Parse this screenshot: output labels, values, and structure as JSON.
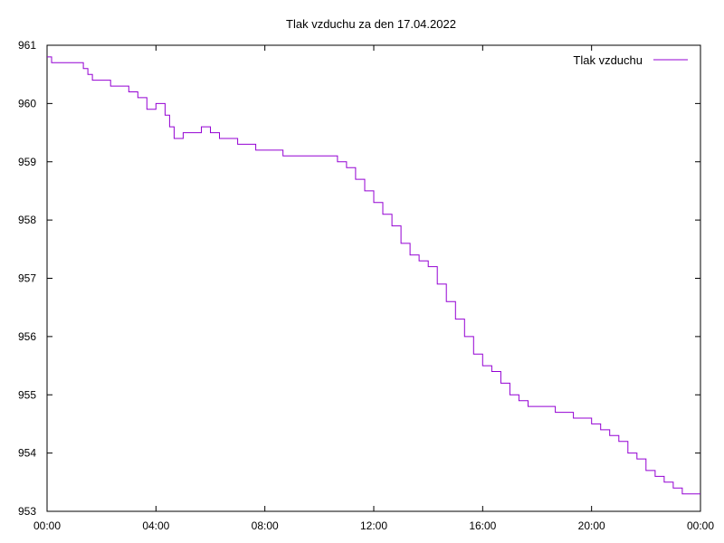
{
  "chart_data": {
    "type": "line",
    "title": "Tlak vzduchu za den 17.04.2022",
    "xlabel": "",
    "ylabel": "",
    "xlim": [
      "00:00",
      "24:00"
    ],
    "ylim": [
      953,
      961
    ],
    "x_ticks": [
      "00:00",
      "04:00",
      "08:00",
      "12:00",
      "16:00",
      "20:00",
      "00:00"
    ],
    "y_ticks": [
      953,
      954,
      955,
      956,
      957,
      958,
      959,
      960,
      961
    ],
    "grid": false,
    "legend": {
      "position": "top-right",
      "entries": [
        "Tlak vzduchu"
      ]
    },
    "colors": {
      "series": "#9400d3",
      "axes": "#000000"
    },
    "series": [
      {
        "name": "Tlak vzduchu",
        "x": [
          "00:00",
          "00:10",
          "00:20",
          "00:40",
          "01:00",
          "01:20",
          "01:30",
          "01:40",
          "02:00",
          "02:20",
          "02:40",
          "03:00",
          "03:20",
          "03:40",
          "04:00",
          "04:10",
          "04:20",
          "04:30",
          "04:40",
          "05:00",
          "05:20",
          "05:40",
          "06:00",
          "06:20",
          "06:40",
          "07:00",
          "07:20",
          "07:40",
          "08:00",
          "08:20",
          "08:40",
          "09:00",
          "09:20",
          "09:40",
          "10:00",
          "10:20",
          "10:40",
          "11:00",
          "11:20",
          "11:40",
          "12:00",
          "12:20",
          "12:40",
          "13:00",
          "13:20",
          "13:40",
          "14:00",
          "14:20",
          "14:40",
          "15:00",
          "15:20",
          "15:40",
          "16:00",
          "16:20",
          "16:40",
          "17:00",
          "17:20",
          "17:40",
          "18:00",
          "18:20",
          "18:40",
          "19:00",
          "19:20",
          "19:40",
          "20:00",
          "20:20",
          "20:40",
          "21:00",
          "21:20",
          "21:40",
          "22:00",
          "22:20",
          "22:40",
          "23:00",
          "23:20",
          "23:40",
          "24:00"
        ],
        "values": [
          960.8,
          960.7,
          960.7,
          960.7,
          960.7,
          960.6,
          960.5,
          960.4,
          960.4,
          960.3,
          960.3,
          960.2,
          960.1,
          959.9,
          960.0,
          960.0,
          959.8,
          959.6,
          959.4,
          959.5,
          959.5,
          959.6,
          959.5,
          959.4,
          959.4,
          959.3,
          959.3,
          959.2,
          959.2,
          959.2,
          959.1,
          959.1,
          959.1,
          959.1,
          959.1,
          959.1,
          959.0,
          958.9,
          958.7,
          958.5,
          958.3,
          958.1,
          957.9,
          957.6,
          957.4,
          957.3,
          957.2,
          956.9,
          956.6,
          956.3,
          956.0,
          955.7,
          955.5,
          955.4,
          955.2,
          955.0,
          954.9,
          954.8,
          954.8,
          954.8,
          954.7,
          954.7,
          954.6,
          954.6,
          954.5,
          954.4,
          954.3,
          954.2,
          954.0,
          953.9,
          953.7,
          953.6,
          953.5,
          953.4,
          953.3,
          953.3,
          953.3
        ]
      }
    ]
  }
}
